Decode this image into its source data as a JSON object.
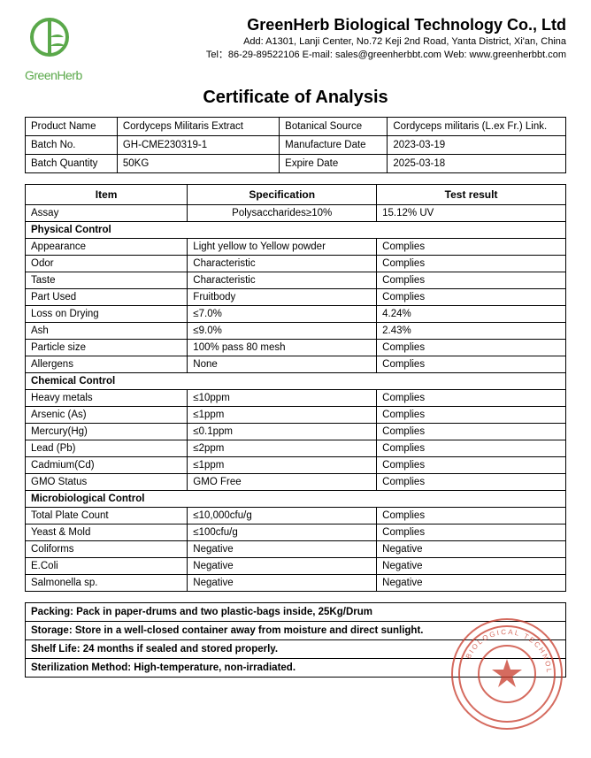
{
  "company": {
    "name": "GreenHerb Biological Technology Co., Ltd",
    "address": "Add: A1301, Lanji Center, No.72 Keji 2nd Road, Yanta District, Xi'an, China",
    "contact": "Tel：86-29-89522106 E-mail: sales@greenherbbt.com Web: www.greenherbbt.com",
    "logo_text": "GreenHerb",
    "logo_color": "#5aa84a"
  },
  "title": "Certificate of Analysis",
  "meta": {
    "product_name_label": "Product Name",
    "product_name": "Cordyceps Militaris Extract",
    "botanical_source_label": "Botanical Source",
    "botanical_source": "Cordyceps militaris (L.ex Fr.) Link.",
    "batch_no_label": "Batch No.",
    "batch_no": "GH-CME230319-1",
    "manufacture_date_label": "Manufacture Date",
    "manufacture_date": "2023-03-19",
    "batch_qty_label": "Batch Quantity",
    "batch_qty": "50KG",
    "expire_date_label": "Expire Date",
    "expire_date": "2025-03-18"
  },
  "results": {
    "headers": {
      "item": "Item",
      "spec": "Specification",
      "result": "Test result"
    },
    "col_widths": {
      "item": "30%",
      "spec": "35%",
      "result": "35%"
    },
    "assay": {
      "item": "Assay",
      "spec": "Polysaccharides≥10%",
      "result": "15.12% UV"
    },
    "physical_label": "Physical Control",
    "physical": [
      {
        "item": "Appearance",
        "spec": "Light yellow to Yellow powder",
        "result": "Complies"
      },
      {
        "item": "Odor",
        "spec": "Characteristic",
        "result": "Complies"
      },
      {
        "item": "Taste",
        "spec": "Characteristic",
        "result": "Complies"
      },
      {
        "item": "Part Used",
        "spec": "Fruitbody",
        "result": "Complies"
      },
      {
        "item": "Loss on Drying",
        "spec": "≤7.0%",
        "result": "4.24%"
      },
      {
        "item": "Ash",
        "spec": "≤9.0%",
        "result": "2.43%"
      },
      {
        "item": "Particle size",
        "spec": "100% pass 80 mesh",
        "result": "Complies"
      },
      {
        "item": "Allergens",
        "spec": "None",
        "result": "Complies"
      }
    ],
    "chemical_label": "Chemical Control",
    "chemical": [
      {
        "item": "Heavy metals",
        "spec": "≤10ppm",
        "result": "Complies"
      },
      {
        "item": "Arsenic (As)",
        "spec": "≤1ppm",
        "result": "Complies"
      },
      {
        "item": "Mercury(Hg)",
        "spec": "≤0.1ppm",
        "result": "Complies"
      },
      {
        "item": "Lead (Pb)",
        "spec": "≤2ppm",
        "result": "Complies"
      },
      {
        "item": "Cadmium(Cd)",
        "spec": "≤1ppm",
        "result": "Complies"
      },
      {
        "item": "GMO Status",
        "spec": "GMO Free",
        "result": "Complies"
      }
    ],
    "micro_label": "Microbiological Control",
    "micro": [
      {
        "item": "Total Plate Count",
        "spec": "≤10,000cfu/g",
        "result": "Complies"
      },
      {
        "item": "Yeast & Mold",
        "spec": "≤100cfu/g",
        "result": "Complies"
      },
      {
        "item": "Coliforms",
        "spec": "Negative",
        "result": "Negative"
      },
      {
        "item": "E.Coli",
        "spec": "Negative",
        "result": "Negative"
      },
      {
        "item": "Salmonella sp.",
        "spec": "Negative",
        "result": "Negative"
      }
    ]
  },
  "footer": {
    "packing": "Packing: Pack in paper-drums and two plastic-bags inside, 25Kg/Drum",
    "storage": "Storage: Store in a well-closed container away from moisture and direct sunlight.",
    "shelf": "Shelf Life: 24 months if sealed and stored properly.",
    "sterilization": "Sterilization Method: High-temperature, non-irradiated."
  },
  "stamp": {
    "outer_text": "BIOLOGICAL TECHNOLOGY",
    "color": "#c83a2a",
    "star_color": "#c83a2a"
  }
}
